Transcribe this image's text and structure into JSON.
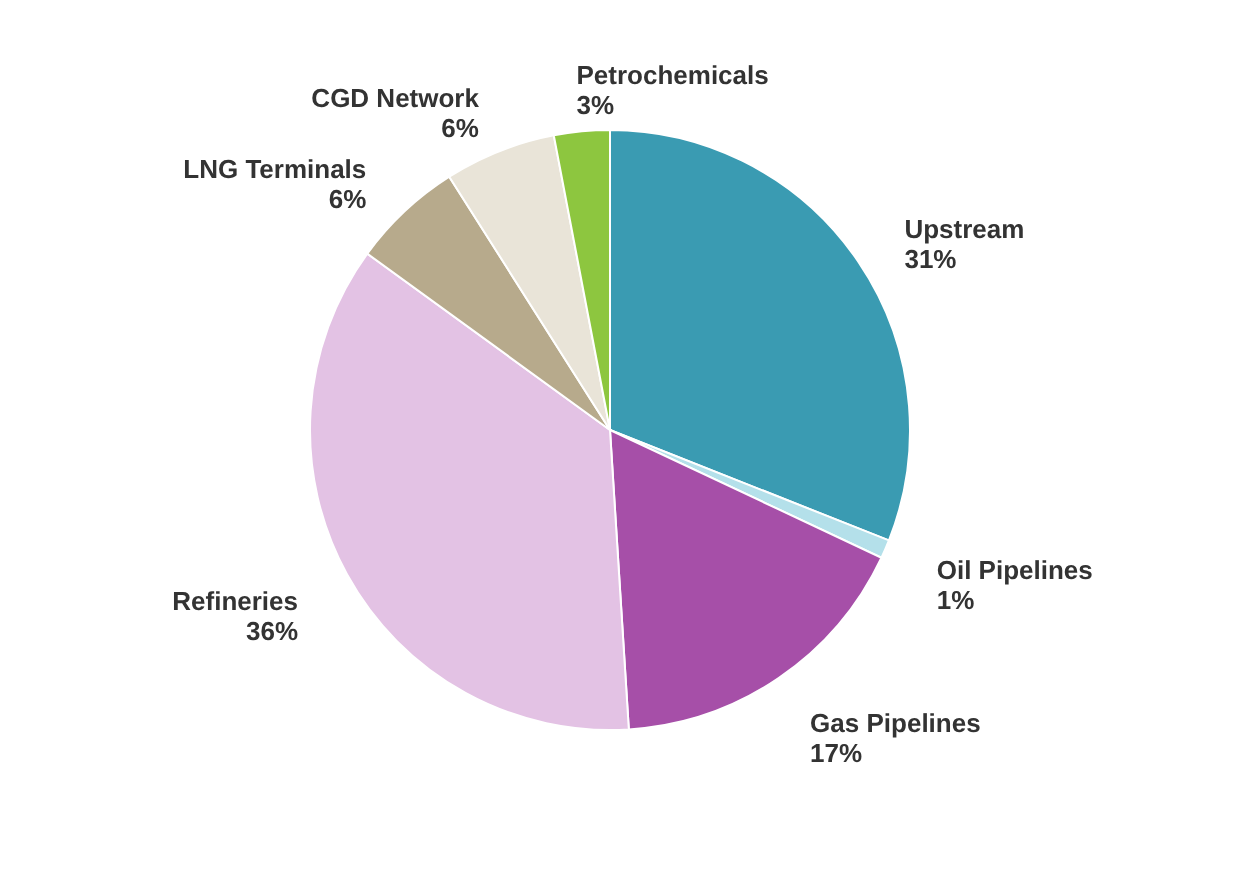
{
  "chart_data": {
    "type": "pie",
    "categories": [
      "Upstream",
      "Oil Pipelines",
      "Gas Pipelines",
      "Refineries",
      "LNG Terminals",
      "CGD Network",
      "Petrochemicals"
    ],
    "values": [
      31,
      1,
      17,
      36,
      6,
      6,
      3
    ],
    "value_labels": [
      "31%",
      "1%",
      "17%",
      "36%",
      "6%",
      "6%",
      "3%"
    ],
    "colors": [
      "#3a9bb2",
      "#b4e0ea",
      "#a64fa8",
      "#e3c2e4",
      "#b7aa8c",
      "#e9e4d8",
      "#8dc63f"
    ]
  }
}
